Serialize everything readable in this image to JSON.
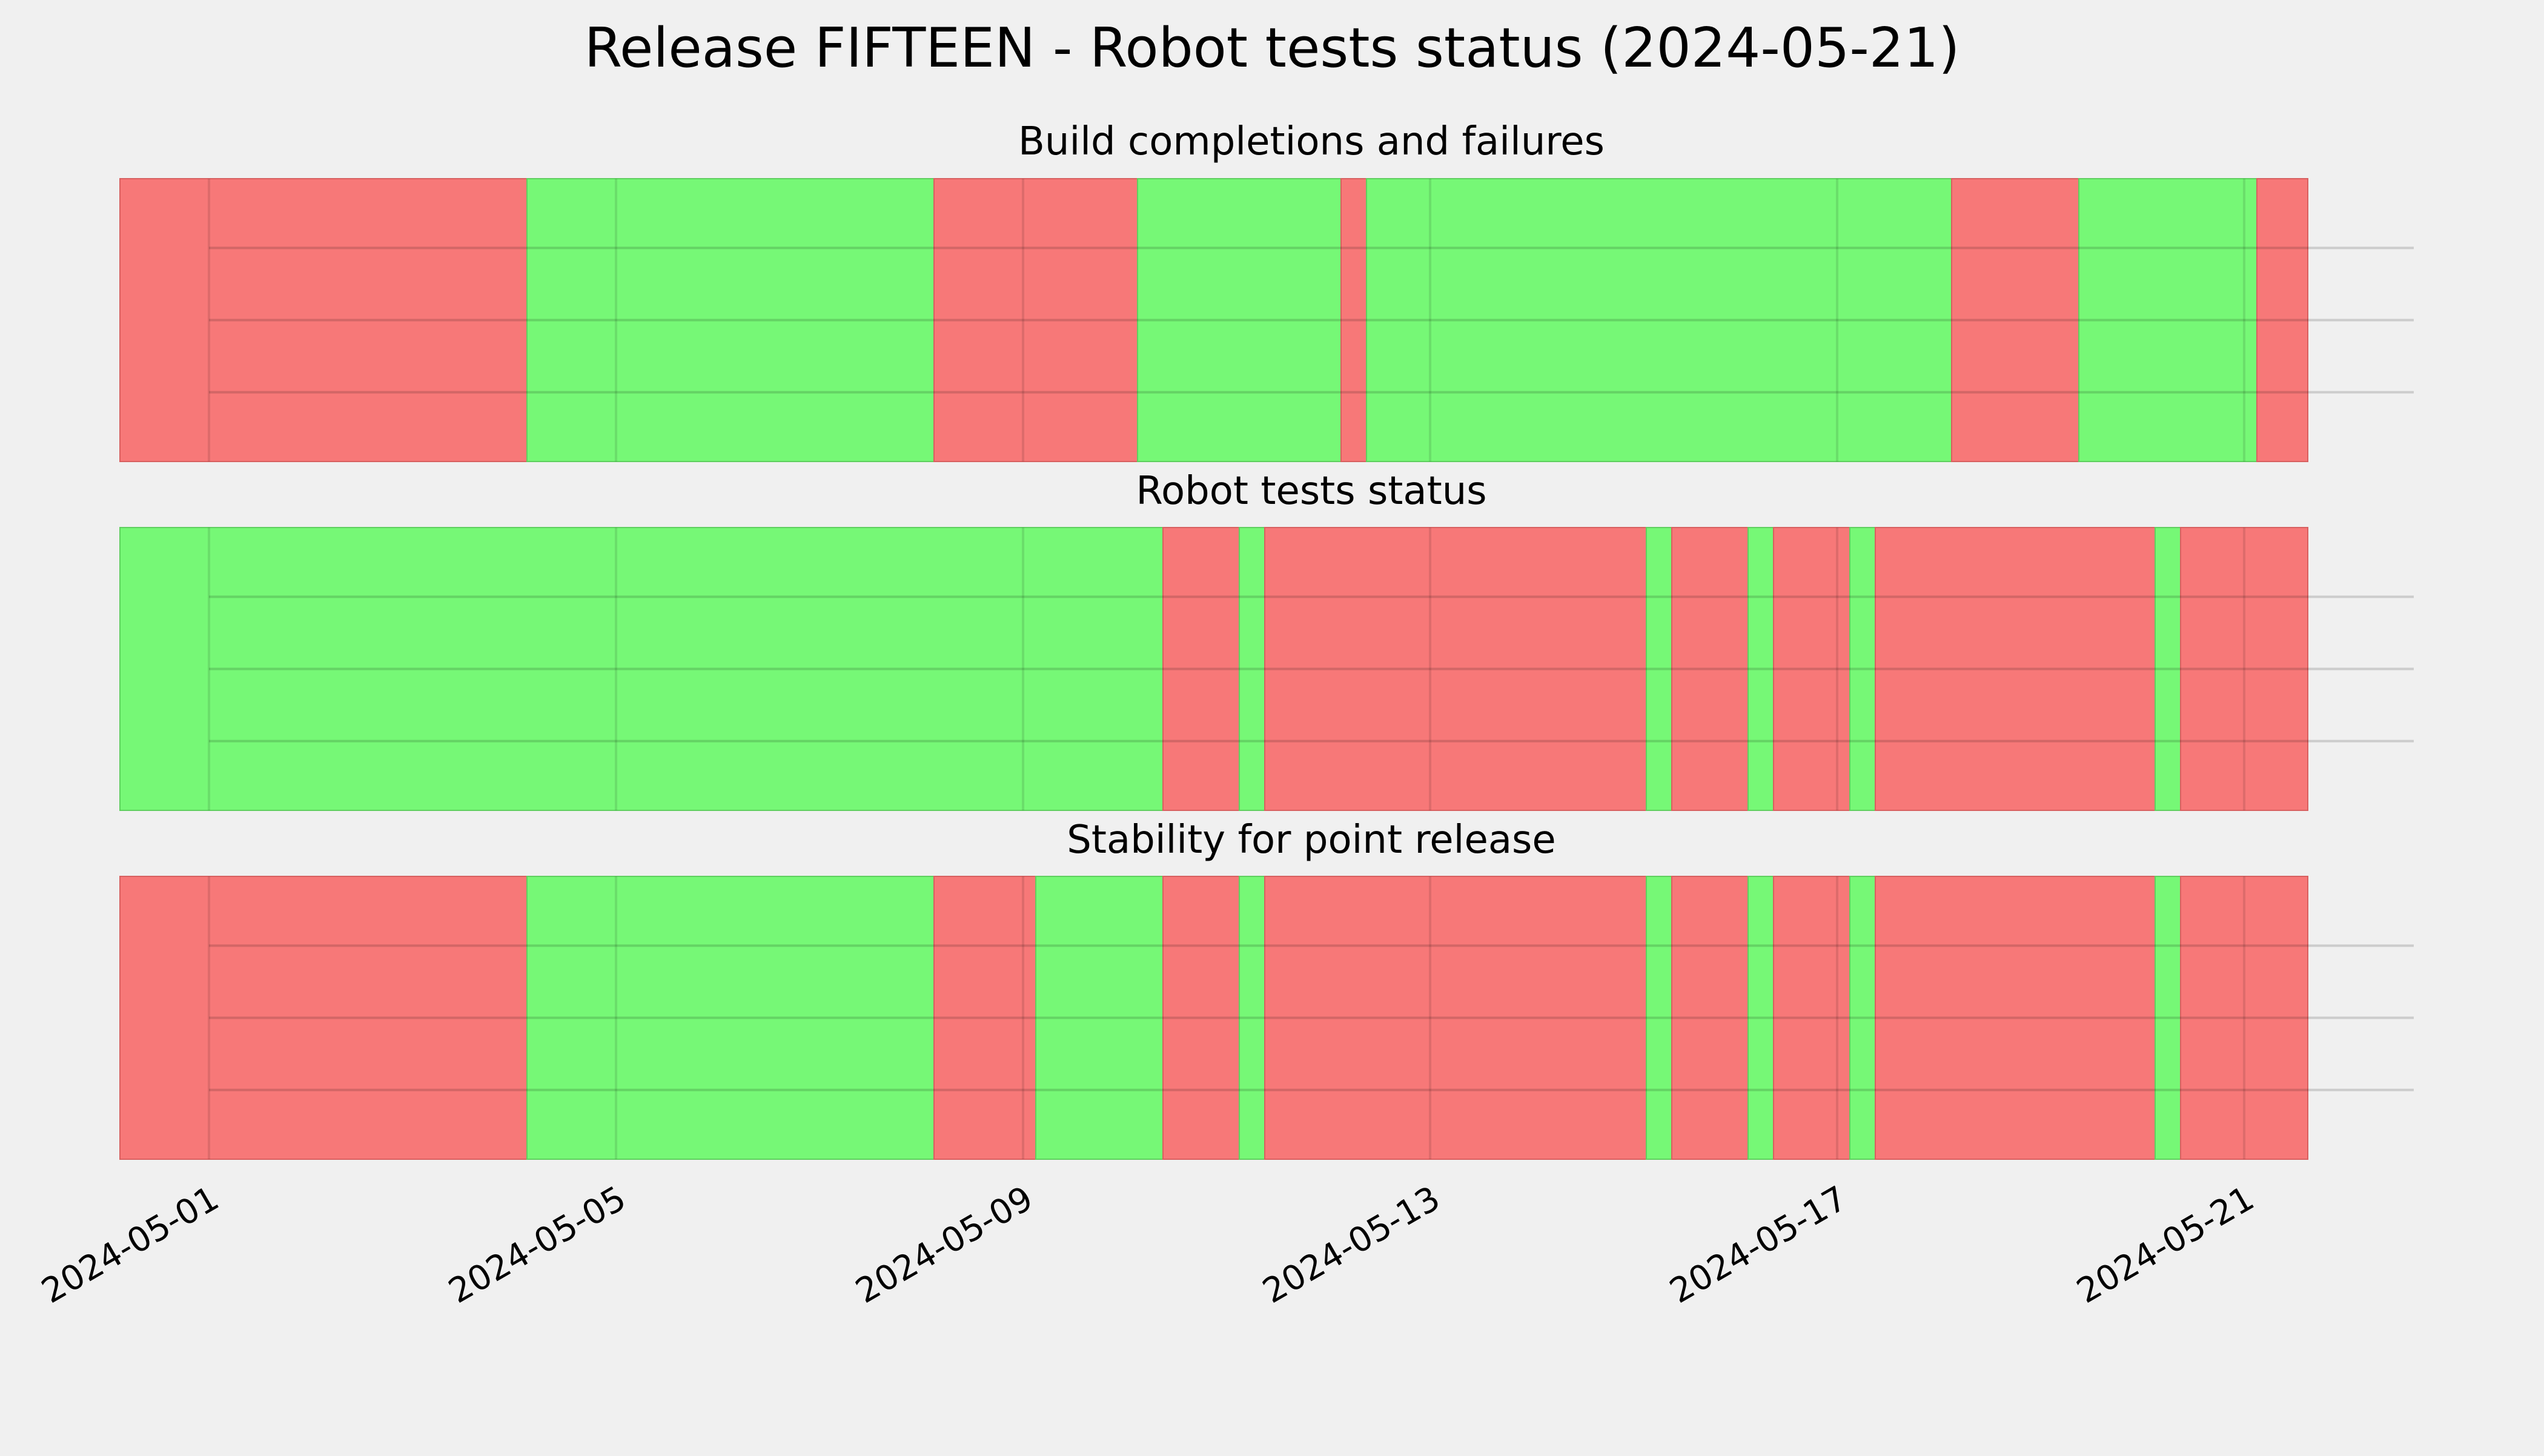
{
  "chart_data": {
    "type": "timeline",
    "title": "Release FIFTEEN - Robot tests status (2024-05-21)",
    "x_axis": {
      "range": [
        "2024-05-01T00:00",
        "2024-05-22T16:00"
      ],
      "ticks": [
        "2024-05-01",
        "2024-05-05",
        "2024-05-09",
        "2024-05-13",
        "2024-05-17",
        "2024-05-21"
      ]
    },
    "grid": true,
    "colors": {
      "pass": "#76f876",
      "fail": "#f77878",
      "background": "#f0f0f0"
    },
    "panels": [
      {
        "title": "Build completions and failures",
        "segments": [
          {
            "start": "2024-04-30T03:00",
            "end": "2024-05-04T03:00",
            "status": "fail"
          },
          {
            "start": "2024-05-04T03:00",
            "end": "2024-05-08T03:00",
            "status": "pass"
          },
          {
            "start": "2024-05-08T03:00",
            "end": "2024-05-10T03:00",
            "status": "fail"
          },
          {
            "start": "2024-05-10T03:00",
            "end": "2024-05-12T03:00",
            "status": "pass"
          },
          {
            "start": "2024-05-12T03:00",
            "end": "2024-05-12T09:00",
            "status": "fail"
          },
          {
            "start": "2024-05-12T09:00",
            "end": "2024-05-18T03:00",
            "status": "pass"
          },
          {
            "start": "2024-05-18T03:00",
            "end": "2024-05-19T09:00",
            "status": "fail"
          },
          {
            "start": "2024-05-19T09:00",
            "end": "2024-05-21T03:00",
            "status": "pass"
          },
          {
            "start": "2024-05-21T03:00",
            "end": "2024-05-21T15:00",
            "status": "fail"
          }
        ]
      },
      {
        "title": "Robot tests status",
        "segments": [
          {
            "start": "2024-04-30T03:00",
            "end": "2024-05-10T09:00",
            "status": "pass"
          },
          {
            "start": "2024-05-10T09:00",
            "end": "2024-05-11T03:00",
            "status": "fail"
          },
          {
            "start": "2024-05-11T03:00",
            "end": "2024-05-11T09:00",
            "status": "pass"
          },
          {
            "start": "2024-05-11T09:00",
            "end": "2024-05-15T03:00",
            "status": "fail"
          },
          {
            "start": "2024-05-15T03:00",
            "end": "2024-05-15T09:00",
            "status": "pass"
          },
          {
            "start": "2024-05-15T09:00",
            "end": "2024-05-16T03:00",
            "status": "fail"
          },
          {
            "start": "2024-05-16T03:00",
            "end": "2024-05-16T09:00",
            "status": "pass"
          },
          {
            "start": "2024-05-16T09:00",
            "end": "2024-05-17T03:00",
            "status": "fail"
          },
          {
            "start": "2024-05-17T03:00",
            "end": "2024-05-17T09:00",
            "status": "pass"
          },
          {
            "start": "2024-05-17T09:00",
            "end": "2024-05-20T03:00",
            "status": "fail"
          },
          {
            "start": "2024-05-20T03:00",
            "end": "2024-05-20T09:00",
            "status": "pass"
          },
          {
            "start": "2024-05-20T09:00",
            "end": "2024-05-21T15:00",
            "status": "fail"
          }
        ]
      },
      {
        "title": "Stability for point release",
        "segments": [
          {
            "start": "2024-04-30T03:00",
            "end": "2024-05-04T03:00",
            "status": "fail"
          },
          {
            "start": "2024-05-04T03:00",
            "end": "2024-05-08T03:00",
            "status": "pass"
          },
          {
            "start": "2024-05-08T03:00",
            "end": "2024-05-09T03:00",
            "status": "fail"
          },
          {
            "start": "2024-05-09T03:00",
            "end": "2024-05-10T09:00",
            "status": "pass"
          },
          {
            "start": "2024-05-10T09:00",
            "end": "2024-05-11T03:00",
            "status": "fail"
          },
          {
            "start": "2024-05-11T03:00",
            "end": "2024-05-11T09:00",
            "status": "pass"
          },
          {
            "start": "2024-05-11T09:00",
            "end": "2024-05-15T03:00",
            "status": "fail"
          },
          {
            "start": "2024-05-15T03:00",
            "end": "2024-05-15T09:00",
            "status": "pass"
          },
          {
            "start": "2024-05-15T09:00",
            "end": "2024-05-16T03:00",
            "status": "fail"
          },
          {
            "start": "2024-05-16T03:00",
            "end": "2024-05-16T09:00",
            "status": "pass"
          },
          {
            "start": "2024-05-16T09:00",
            "end": "2024-05-17T03:00",
            "status": "fail"
          },
          {
            "start": "2024-05-17T03:00",
            "end": "2024-05-17T09:00",
            "status": "pass"
          },
          {
            "start": "2024-05-17T09:00",
            "end": "2024-05-20T03:00",
            "status": "fail"
          },
          {
            "start": "2024-05-20T03:00",
            "end": "2024-05-20T09:00",
            "status": "pass"
          },
          {
            "start": "2024-05-20T09:00",
            "end": "2024-05-21T15:00",
            "status": "fail"
          }
        ]
      }
    ]
  }
}
